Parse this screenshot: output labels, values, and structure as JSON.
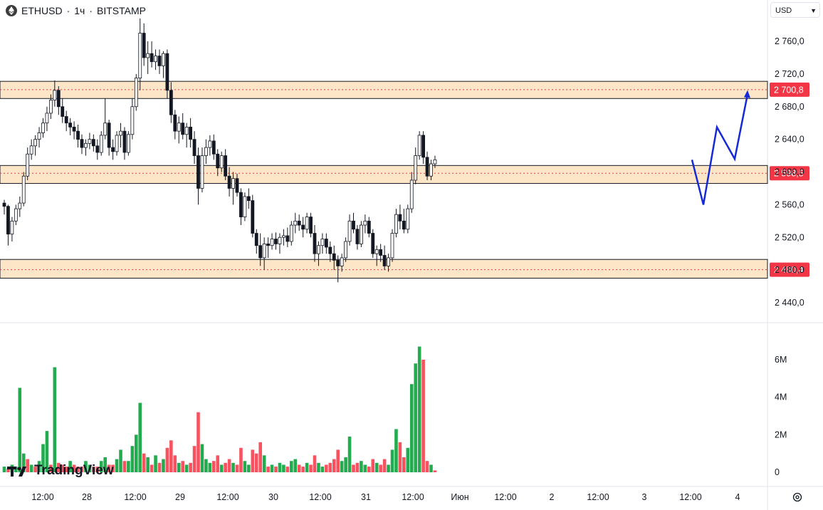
{
  "header": {
    "symbol": "ETHUSD",
    "interval": "1ч",
    "exchange": "BITSTAMP",
    "separator": "·"
  },
  "currency_selector": {
    "value": "USD"
  },
  "watermark": {
    "text": "TradingView"
  },
  "colors": {
    "up": "#089981",
    "down": "#f23645",
    "vol_up": "#22ab4f",
    "vol_down": "#f7525f",
    "zone_fill": "#fde6c8",
    "price_label": "#f23645",
    "projection": "#1529d6"
  },
  "chart_data": {
    "type": "candlestick",
    "price_axis": {
      "ticks": [
        2760,
        2720,
        2680,
        2640,
        2600,
        2560,
        2520,
        2480,
        2440
      ],
      "tick_labels": [
        "2 760,0",
        "2 720,0",
        "2 680,0",
        "2 640,0",
        "2 600,0",
        "2 560,0",
        "2 520,0",
        "2 480,0",
        "2 440,0"
      ],
      "range": [
        2425,
        2800
      ]
    },
    "volume_axis": {
      "ticks": [
        6,
        4,
        2,
        0
      ],
      "tick_labels": [
        "6M",
        "4M",
        "2M",
        "0"
      ],
      "unit": "M",
      "range": [
        0,
        7.3
      ]
    },
    "time_axis_labels": [
      "12:00",
      "28",
      "12:00",
      "29",
      "12:00",
      "30",
      "12:00",
      "31",
      "12:00",
      "Июн",
      "12:00",
      "2",
      "12:00",
      "3",
      "12:00",
      "4"
    ],
    "zones": [
      {
        "level": 2700.8,
        "label": "2 700,8",
        "low": 2690,
        "high": 2711
      },
      {
        "level": 2598.5,
        "label": "2 598,5",
        "low": 2586,
        "high": 2608
      },
      {
        "level": 2480.4,
        "label": "2 480,4",
        "low": 2470,
        "high": 2493
      }
    ],
    "projection_path": [
      2615,
      2560,
      2655,
      2616,
      2695
    ],
    "candles_note": "hourly OHLC, approximate",
    "candles": [
      [
        2562,
        2566,
        2548,
        2558
      ],
      [
        2558,
        2560,
        2510,
        2524
      ],
      [
        2524,
        2545,
        2515,
        2540
      ],
      [
        2540,
        2560,
        2535,
        2555
      ],
      [
        2555,
        2570,
        2545,
        2562
      ],
      [
        2562,
        2600,
        2558,
        2595
      ],
      [
        2595,
        2630,
        2590,
        2622
      ],
      [
        2622,
        2640,
        2615,
        2632
      ],
      [
        2632,
        2645,
        2620,
        2640
      ],
      [
        2640,
        2655,
        2630,
        2648
      ],
      [
        2648,
        2666,
        2642,
        2660
      ],
      [
        2660,
        2680,
        2650,
        2672
      ],
      [
        2672,
        2695,
        2665,
        2688
      ],
      [
        2688,
        2712,
        2680,
        2700
      ],
      [
        2700,
        2705,
        2670,
        2680
      ],
      [
        2680,
        2690,
        2660,
        2668
      ],
      [
        2668,
        2675,
        2650,
        2660
      ],
      [
        2660,
        2666,
        2645,
        2655
      ],
      [
        2655,
        2662,
        2640,
        2650
      ],
      [
        2650,
        2658,
        2630,
        2640
      ],
      [
        2640,
        2646,
        2622,
        2630
      ],
      [
        2630,
        2640,
        2620,
        2635
      ],
      [
        2635,
        2648,
        2628,
        2640
      ],
      [
        2640,
        2646,
        2625,
        2632
      ],
      [
        2632,
        2640,
        2615,
        2624
      ],
      [
        2624,
        2650,
        2620,
        2645
      ],
      [
        2645,
        2690,
        2640,
        2660
      ],
      [
        2660,
        2664,
        2620,
        2630
      ],
      [
        2630,
        2640,
        2615,
        2625
      ],
      [
        2625,
        2650,
        2620,
        2645
      ],
      [
        2645,
        2660,
        2630,
        2650
      ],
      [
        2650,
        2655,
        2615,
        2624
      ],
      [
        2624,
        2650,
        2620,
        2646
      ],
      [
        2646,
        2690,
        2640,
        2680
      ],
      [
        2680,
        2720,
        2675,
        2715
      ],
      [
        2715,
        2788,
        2700,
        2770
      ],
      [
        2770,
        2782,
        2730,
        2740
      ],
      [
        2740,
        2760,
        2720,
        2745
      ],
      [
        2745,
        2760,
        2728,
        2735
      ],
      [
        2735,
        2750,
        2725,
        2742
      ],
      [
        2742,
        2750,
        2720,
        2730
      ],
      [
        2730,
        2748,
        2715,
        2745
      ],
      [
        2745,
        2750,
        2690,
        2700
      ],
      [
        2700,
        2710,
        2660,
        2670
      ],
      [
        2670,
        2676,
        2640,
        2650
      ],
      [
        2650,
        2668,
        2635,
        2660
      ],
      [
        2660,
        2672,
        2640,
        2646
      ],
      [
        2646,
        2660,
        2630,
        2655
      ],
      [
        2655,
        2666,
        2630,
        2640
      ],
      [
        2640,
        2650,
        2610,
        2620
      ],
      [
        2620,
        2630,
        2560,
        2580
      ],
      [
        2580,
        2630,
        2575,
        2620
      ],
      [
        2620,
        2640,
        2610,
        2630
      ],
      [
        2630,
        2645,
        2620,
        2638
      ],
      [
        2638,
        2646,
        2615,
        2622
      ],
      [
        2622,
        2628,
        2595,
        2605
      ],
      [
        2605,
        2625,
        2600,
        2620
      ],
      [
        2620,
        2628,
        2590,
        2595
      ],
      [
        2595,
        2606,
        2570,
        2580
      ],
      [
        2580,
        2600,
        2560,
        2592
      ],
      [
        2592,
        2598,
        2570,
        2575
      ],
      [
        2575,
        2580,
        2535,
        2545
      ],
      [
        2545,
        2575,
        2540,
        2570
      ],
      [
        2570,
        2580,
        2555,
        2565
      ],
      [
        2565,
        2572,
        2520,
        2525
      ],
      [
        2525,
        2530,
        2500,
        2510
      ],
      [
        2510,
        2525,
        2485,
        2495
      ],
      [
        2495,
        2520,
        2480,
        2512
      ],
      [
        2512,
        2520,
        2495,
        2510
      ],
      [
        2510,
        2525,
        2505,
        2518
      ],
      [
        2518,
        2526,
        2505,
        2512
      ],
      [
        2512,
        2525,
        2500,
        2520
      ],
      [
        2520,
        2530,
        2510,
        2522
      ],
      [
        2522,
        2532,
        2508,
        2515
      ],
      [
        2515,
        2540,
        2510,
        2535
      ],
      [
        2535,
        2550,
        2525,
        2540
      ],
      [
        2540,
        2548,
        2528,
        2535
      ],
      [
        2535,
        2545,
        2520,
        2530
      ],
      [
        2530,
        2550,
        2525,
        2545
      ],
      [
        2545,
        2550,
        2520,
        2525
      ],
      [
        2525,
        2535,
        2490,
        2500
      ],
      [
        2500,
        2515,
        2485,
        2510
      ],
      [
        2510,
        2525,
        2500,
        2518
      ],
      [
        2518,
        2525,
        2500,
        2508
      ],
      [
        2508,
        2515,
        2490,
        2500
      ],
      [
        2500,
        2510,
        2480,
        2492
      ],
      [
        2492,
        2498,
        2465,
        2485
      ],
      [
        2485,
        2500,
        2478,
        2495
      ],
      [
        2495,
        2520,
        2490,
        2515
      ],
      [
        2515,
        2548,
        2510,
        2540
      ],
      [
        2540,
        2550,
        2525,
        2530
      ],
      [
        2530,
        2535,
        2505,
        2512
      ],
      [
        2512,
        2540,
        2508,
        2535
      ],
      [
        2535,
        2548,
        2525,
        2540
      ],
      [
        2540,
        2545,
        2520,
        2525
      ],
      [
        2525,
        2530,
        2495,
        2500
      ],
      [
        2500,
        2510,
        2485,
        2505
      ],
      [
        2505,
        2512,
        2490,
        2498
      ],
      [
        2498,
        2510,
        2480,
        2485
      ],
      [
        2485,
        2500,
        2478,
        2495
      ],
      [
        2495,
        2530,
        2490,
        2525
      ],
      [
        2525,
        2555,
        2520,
        2548
      ],
      [
        2548,
        2560,
        2530,
        2540
      ],
      [
        2540,
        2555,
        2525,
        2530
      ],
      [
        2530,
        2560,
        2525,
        2555
      ],
      [
        2555,
        2600,
        2550,
        2590
      ],
      [
        2590,
        2630,
        2585,
        2620
      ],
      [
        2620,
        2650,
        2615,
        2645
      ],
      [
        2645,
        2650,
        2610,
        2618
      ],
      [
        2618,
        2625,
        2590,
        2595
      ],
      [
        2595,
        2615,
        2590,
        2610
      ],
      [
        2610,
        2620,
        2605,
        2615
      ]
    ],
    "volumes": [
      [
        0.3,
        "up"
      ],
      [
        0.2,
        "down"
      ],
      [
        0.4,
        "up"
      ],
      [
        0.3,
        "up"
      ],
      [
        4.5,
        "up"
      ],
      [
        1.0,
        "up"
      ],
      [
        0.7,
        "down"
      ],
      [
        0.4,
        "up"
      ],
      [
        0.3,
        "down"
      ],
      [
        0.6,
        "up"
      ],
      [
        1.5,
        "up"
      ],
      [
        2.2,
        "up"
      ],
      [
        0.4,
        "down"
      ],
      [
        5.6,
        "up"
      ],
      [
        0.5,
        "down"
      ],
      [
        0.4,
        "down"
      ],
      [
        0.3,
        "down"
      ],
      [
        0.6,
        "up"
      ],
      [
        0.4,
        "down"
      ],
      [
        0.3,
        "down"
      ],
      [
        0.3,
        "down"
      ],
      [
        0.6,
        "up"
      ],
      [
        0.4,
        "up"
      ],
      [
        0.3,
        "down"
      ],
      [
        0.3,
        "down"
      ],
      [
        0.6,
        "up"
      ],
      [
        0.8,
        "up"
      ],
      [
        0.4,
        "down"
      ],
      [
        0.4,
        "down"
      ],
      [
        0.7,
        "up"
      ],
      [
        1.2,
        "up"
      ],
      [
        0.6,
        "down"
      ],
      [
        0.6,
        "up"
      ],
      [
        1.4,
        "up"
      ],
      [
        2.0,
        "up"
      ],
      [
        3.7,
        "up"
      ],
      [
        1.0,
        "down"
      ],
      [
        0.8,
        "up"
      ],
      [
        0.4,
        "down"
      ],
      [
        0.9,
        "up"
      ],
      [
        0.5,
        "down"
      ],
      [
        0.7,
        "up"
      ],
      [
        1.3,
        "down"
      ],
      [
        1.7,
        "down"
      ],
      [
        0.9,
        "down"
      ],
      [
        0.5,
        "up"
      ],
      [
        0.6,
        "down"
      ],
      [
        0.4,
        "up"
      ],
      [
        0.5,
        "down"
      ],
      [
        1.4,
        "down"
      ],
      [
        3.2,
        "down"
      ],
      [
        1.5,
        "up"
      ],
      [
        0.7,
        "up"
      ],
      [
        0.5,
        "up"
      ],
      [
        0.6,
        "down"
      ],
      [
        0.9,
        "down"
      ],
      [
        0.4,
        "up"
      ],
      [
        0.5,
        "down"
      ],
      [
        0.7,
        "down"
      ],
      [
        0.5,
        "up"
      ],
      [
        0.4,
        "down"
      ],
      [
        1.3,
        "down"
      ],
      [
        0.6,
        "up"
      ],
      [
        0.4,
        "up"
      ],
      [
        1.2,
        "down"
      ],
      [
        1.0,
        "down"
      ],
      [
        1.6,
        "down"
      ],
      [
        0.9,
        "up"
      ],
      [
        0.3,
        "down"
      ],
      [
        0.4,
        "up"
      ],
      [
        0.3,
        "down"
      ],
      [
        0.5,
        "up"
      ],
      [
        0.4,
        "up"
      ],
      [
        0.3,
        "down"
      ],
      [
        0.6,
        "up"
      ],
      [
        0.7,
        "up"
      ],
      [
        0.4,
        "down"
      ],
      [
        0.3,
        "down"
      ],
      [
        0.5,
        "up"
      ],
      [
        0.4,
        "down"
      ],
      [
        0.9,
        "down"
      ],
      [
        0.5,
        "up"
      ],
      [
        0.3,
        "up"
      ],
      [
        0.4,
        "down"
      ],
      [
        0.5,
        "down"
      ],
      [
        0.7,
        "down"
      ],
      [
        1.2,
        "down"
      ],
      [
        0.6,
        "up"
      ],
      [
        0.8,
        "up"
      ],
      [
        1.9,
        "up"
      ],
      [
        0.4,
        "down"
      ],
      [
        0.5,
        "down"
      ],
      [
        0.6,
        "up"
      ],
      [
        0.4,
        "up"
      ],
      [
        0.3,
        "down"
      ],
      [
        0.7,
        "down"
      ],
      [
        0.5,
        "up"
      ],
      [
        0.4,
        "down"
      ],
      [
        0.7,
        "down"
      ],
      [
        0.4,
        "up"
      ],
      [
        1.2,
        "up"
      ],
      [
        2.3,
        "up"
      ],
      [
        1.6,
        "down"
      ],
      [
        0.8,
        "down"
      ],
      [
        1.3,
        "up"
      ],
      [
        4.7,
        "up"
      ],
      [
        5.8,
        "up"
      ],
      [
        6.7,
        "up"
      ],
      [
        6.0,
        "down"
      ],
      [
        0.6,
        "down"
      ],
      [
        0.4,
        "up"
      ],
      [
        0.1,
        "down"
      ]
    ]
  }
}
